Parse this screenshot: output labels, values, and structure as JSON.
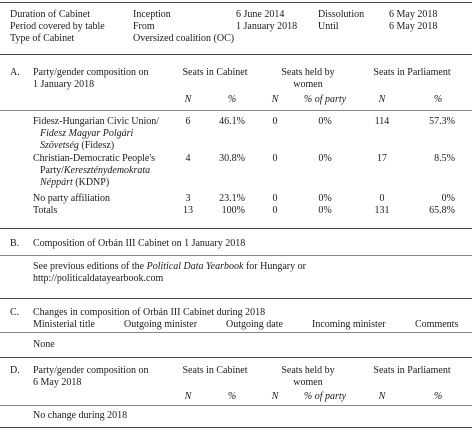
{
  "header": {
    "duration_label": "Duration of Cabinet",
    "inception_label": "Inception",
    "inception_date": "6 June 2014",
    "dissolution_label": "Dissolution",
    "dissolution_date": "6 May 2018",
    "period_label": "Period covered by table",
    "from_label": "From",
    "from_date": "1 January 2018",
    "until_label": "Until",
    "until_date": "6 May 2018",
    "type_label": "Type of Cabinet",
    "type_value": "Oversized coalition (OC)"
  },
  "sectionA": {
    "letter": "A.",
    "title_line1": "Party/gender composition on",
    "title_line2": "1 January 2018",
    "col_cabinet": "Seats in Cabinet",
    "col_women_line1": "Seats held by",
    "col_women_line2": "women",
    "col_parliament": "Seats in Parliament",
    "sub_n": "N",
    "sub_pct": "%",
    "sub_pct_party": "% of party",
    "rows": [
      {
        "lines": [
          "Fidesz-Hungarian Civic Union/",
          "Fidesz Magyar Polgári",
          "Szövetség (Fidesz)"
        ],
        "cab_n": "6",
        "cab_pct": "46.1%",
        "w_n": "0",
        "w_pct": "0%",
        "p_n": "114",
        "p_pct": "57.3%"
      },
      {
        "lines": [
          "Christian-Democratic People's",
          "Party/Kereszténydemokrata",
          "Néppárt (KDNP)"
        ],
        "cab_n": "4",
        "cab_pct": "30.8%",
        "w_n": "0",
        "w_pct": "0%",
        "p_n": "17",
        "p_pct": "8.5%"
      },
      {
        "lines": [
          "No party affiliation"
        ],
        "cab_n": "3",
        "cab_pct": "23.1%",
        "w_n": "0",
        "w_pct": "0%",
        "p_n": "0",
        "p_pct": "0%"
      },
      {
        "lines": [
          "Totals"
        ],
        "cab_n": "13",
        "cab_pct": "100%",
        "w_n": "0",
        "w_pct": "0%",
        "p_n": "131",
        "p_pct": "65.8%"
      }
    ]
  },
  "sectionB": {
    "letter": "B.",
    "title": "Composition of Orbán III Cabinet on 1 January 2018",
    "text_pre": "See previous editions of the ",
    "text_italic": "Political Data Yearbook",
    "text_post": " for Hungary or",
    "url": "http://politicaldatayearbook.com"
  },
  "sectionC": {
    "letter": "C.",
    "title": "Changes in composition of Orbán III Cabinet during 2018",
    "col_title": "Ministerial title",
    "col_outgoing": "Outgoing minister",
    "col_outdate": "Outgoing date",
    "col_incoming": "Incoming minister",
    "col_comments": "Comments",
    "value": "None"
  },
  "sectionD": {
    "letter": "D.",
    "title_line1": "Party/gender composition on",
    "title_line2": "6 May 2018",
    "col_cabinet": "Seats in Cabinet",
    "col_women_line1": "Seats held by",
    "col_women_line2": "women",
    "col_parliament": "Seats in Parliament",
    "sub_n": "N",
    "sub_pct": "%",
    "sub_pct_party": "% of party",
    "value": "No change during 2018"
  }
}
